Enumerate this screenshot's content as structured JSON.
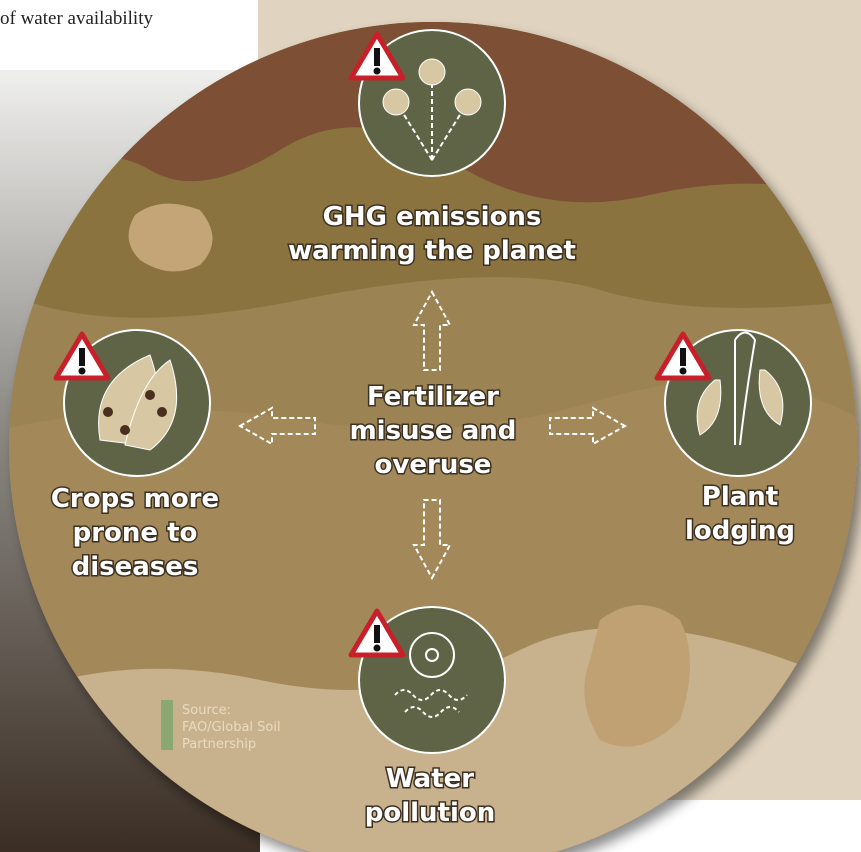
{
  "header": {
    "text": "of water availability"
  },
  "center": {
    "label": [
      "Fertilizer",
      "misuse and",
      "overuse"
    ]
  },
  "nodes": [
    {
      "label": [
        "GHG emissions",
        "warming the planet"
      ]
    },
    {
      "label": [
        "Crops more",
        "prone to",
        "diseases"
      ]
    },
    {
      "label": [
        "Plant",
        "lodging"
      ]
    },
    {
      "label": [
        "Water",
        "pollution"
      ]
    }
  ],
  "source": {
    "label": [
      "Source:",
      "FAO/Global Soil",
      "Partnership"
    ]
  }
}
